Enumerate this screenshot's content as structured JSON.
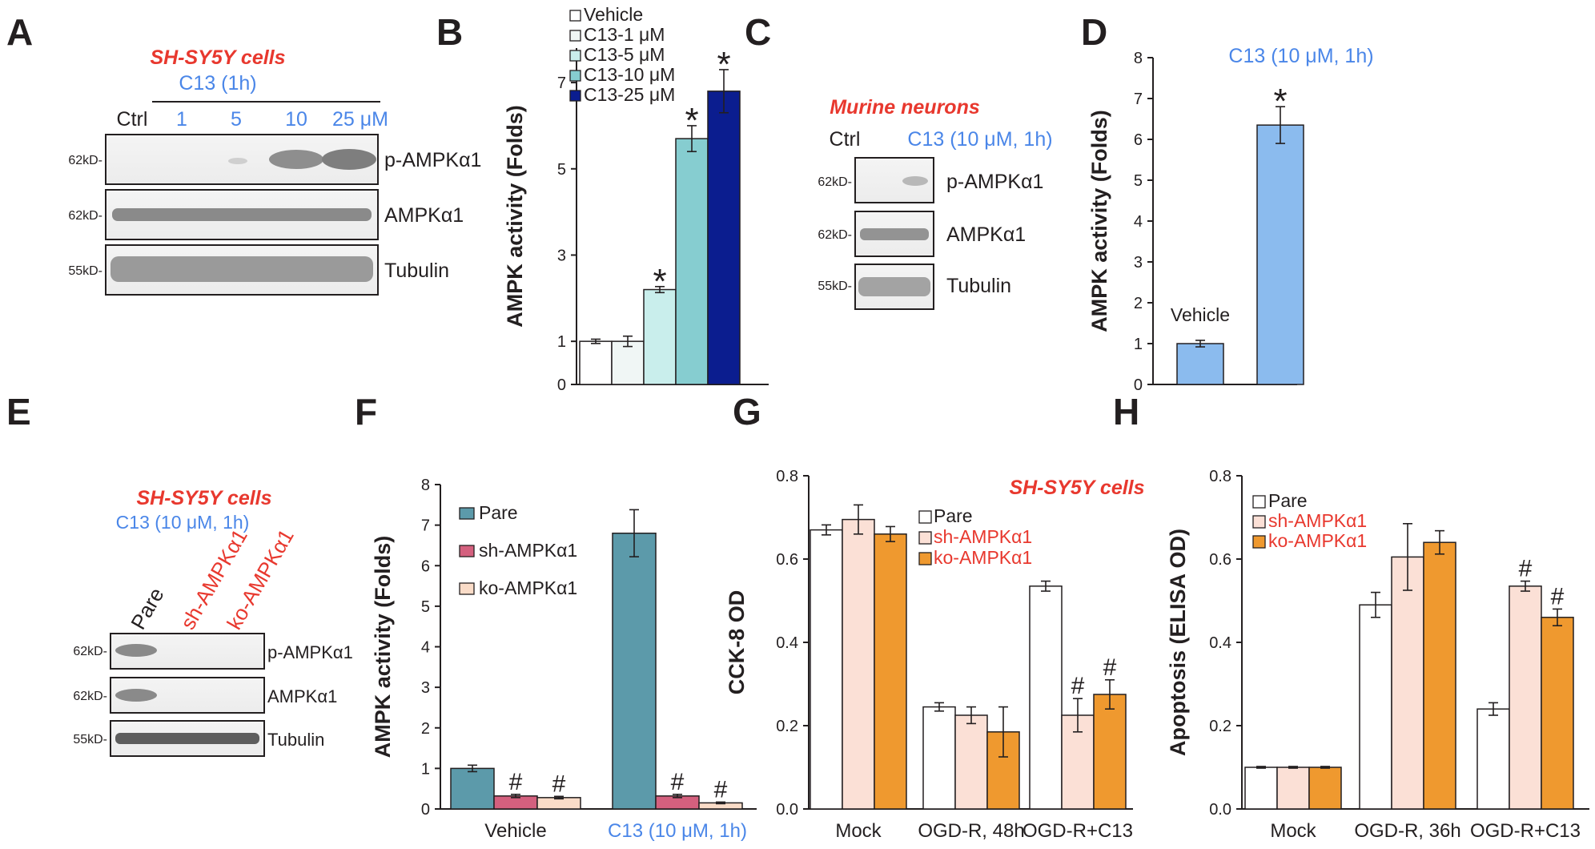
{
  "colors": {
    "blue_text": "#4a86e8",
    "red_text": "#e8382e",
    "vehicle": "#ffffff",
    "c13_1": "#f0f6f5",
    "c13_5": "#c9eeec",
    "c13_10": "#86cdd0",
    "c13_25": "#0b1d8f",
    "d_bar": "#8bbbee",
    "pare_f": "#5c9aaa",
    "sh_f": "#d4607e",
    "ko_f": "#fadcc8",
    "white": "#ffffff",
    "sh_light": "#fbe0d6",
    "ko_orange": "#ef992f"
  },
  "panel_labels": [
    "A",
    "B",
    "C",
    "D",
    "E",
    "F",
    "G",
    "H"
  ],
  "blot_a": {
    "title": "SH-SY5Y cells",
    "treatment": "C13 (1h)",
    "ctrl": "Ctrl",
    "doses": [
      "1",
      "5",
      "10",
      "25 μM"
    ],
    "rows": [
      {
        "kd": "62kD-",
        "name": "p-AMPKα1"
      },
      {
        "kd": "62kD-",
        "name": "AMPKα1"
      },
      {
        "kd": "55kD-",
        "name": "Tubulin"
      }
    ]
  },
  "blot_c": {
    "title": "Murine neurons",
    "ctrl": "Ctrl",
    "treatment": "C13 (10 μM, 1h)",
    "rows": [
      {
        "kd": "62kD-",
        "name": "p-AMPKα1"
      },
      {
        "kd": "62kD-",
        "name": "AMPKα1"
      },
      {
        "kd": "55kD-",
        "name": "Tubulin"
      }
    ]
  },
  "blot_e": {
    "title": "SH-SY5Y cells",
    "treatment": "C13 (10 μM, 1h)",
    "lanes": [
      "Pare",
      "sh-AMPKα1",
      "ko-AMPKα1"
    ],
    "rows": [
      {
        "kd": "62kD-",
        "name": "p-AMPKα1"
      },
      {
        "kd": "62kD-",
        "name": "AMPKα1"
      },
      {
        "kd": "55kD-",
        "name": "Tubulin"
      }
    ]
  },
  "chart_data": [
    {
      "panel": "B",
      "type": "bar",
      "ylabel": "AMPK activity (Folds)",
      "ylim": [
        0,
        7.8
      ],
      "yticks": [
        0,
        1,
        3,
        5,
        7
      ],
      "series": [
        {
          "name": "Vehicle",
          "value": 1.0,
          "err": 0.05
        },
        {
          "name": "C13-1 μM",
          "value": 1.0,
          "err": 0.12
        },
        {
          "name": "C13-5 μM",
          "value": 2.2,
          "err": 0.07,
          "mark": "*"
        },
        {
          "name": "C13-10 μM",
          "value": 5.7,
          "err": 0.3,
          "mark": "*"
        },
        {
          "name": "C13-25 μM",
          "value": 6.8,
          "err": 0.5,
          "mark": "*"
        }
      ],
      "legend_position": "top"
    },
    {
      "panel": "D",
      "type": "bar",
      "ylabel": "AMPK activity (Folds)",
      "ylim": [
        0,
        8
      ],
      "yticks": [
        0,
        1,
        2,
        3,
        4,
        5,
        6,
        7,
        8
      ],
      "annotation": "C13 (10 μM, 1h)",
      "bars": [
        {
          "label": "Vehicle",
          "value": 1.0,
          "err": 0.08
        },
        {
          "label": "",
          "value": 6.35,
          "err": 0.45,
          "mark": "*"
        }
      ]
    },
    {
      "panel": "F",
      "type": "bar",
      "ylabel": "AMPK activity (Folds)",
      "ylim": [
        0,
        8
      ],
      "yticks": [
        0,
        1,
        2,
        3,
        4,
        5,
        6,
        7,
        8
      ],
      "categories": [
        "Vehicle",
        "C13 (10 μM, 1h)"
      ],
      "series": [
        {
          "name": "Pare",
          "values": [
            1.0,
            6.8
          ],
          "err": [
            0.08,
            0.58
          ]
        },
        {
          "name": "sh-AMPKα1",
          "values": [
            0.32,
            0.32
          ],
          "err": [
            0.04,
            0.04
          ],
          "marks": [
            "#",
            "#"
          ]
        },
        {
          "name": "ko-AMPKα1",
          "values": [
            0.28,
            0.15
          ],
          "err": [
            0.03,
            0.02
          ],
          "marks": [
            "#",
            "#"
          ]
        }
      ],
      "legend_position": "left"
    },
    {
      "panel": "G",
      "type": "bar",
      "ylabel": "CCK-8 OD",
      "title": "SH-SY5Y cells",
      "ylim": [
        0,
        0.8
      ],
      "yticks": [
        0,
        0.2,
        0.4,
        0.6,
        0.8
      ],
      "categories": [
        "Mock",
        "OGD-R, 48h",
        "OGD-R+C13"
      ],
      "series": [
        {
          "name": "Pare",
          "values": [
            0.67,
            0.245,
            0.535
          ],
          "err": [
            0.012,
            0.01,
            0.012
          ]
        },
        {
          "name": "sh-AMPKα1",
          "values": [
            0.695,
            0.225,
            0.225
          ],
          "err": [
            0.035,
            0.02,
            0.04
          ],
          "marks": [
            "",
            "",
            "#"
          ]
        },
        {
          "name": "ko-AMPKα1",
          "values": [
            0.66,
            0.185,
            0.275
          ],
          "err": [
            0.018,
            0.06,
            0.035
          ],
          "marks": [
            "",
            "",
            "#"
          ]
        }
      ],
      "legend_position": "top-center"
    },
    {
      "panel": "H",
      "type": "bar",
      "ylabel": "Apoptosis (ELISA OD)",
      "ylim": [
        0,
        0.8
      ],
      "yticks": [
        0,
        0.2,
        0.4,
        0.6,
        0.8
      ],
      "categories": [
        "Mock",
        "OGD-R, 36h",
        "OGD-R+C13"
      ],
      "series": [
        {
          "name": "Pare",
          "values": [
            0.1,
            0.49,
            0.24
          ],
          "err": [
            0.002,
            0.03,
            0.015
          ]
        },
        {
          "name": "sh-AMPKα1",
          "values": [
            0.1,
            0.605,
            0.535
          ],
          "err": [
            0.002,
            0.08,
            0.012
          ],
          "marks": [
            "",
            "",
            "#"
          ]
        },
        {
          "name": "ko-AMPKα1",
          "values": [
            0.1,
            0.64,
            0.46
          ],
          "err": [
            0.002,
            0.028,
            0.02
          ],
          "marks": [
            "",
            "",
            "#"
          ]
        }
      ],
      "legend_position": "top-left"
    }
  ]
}
